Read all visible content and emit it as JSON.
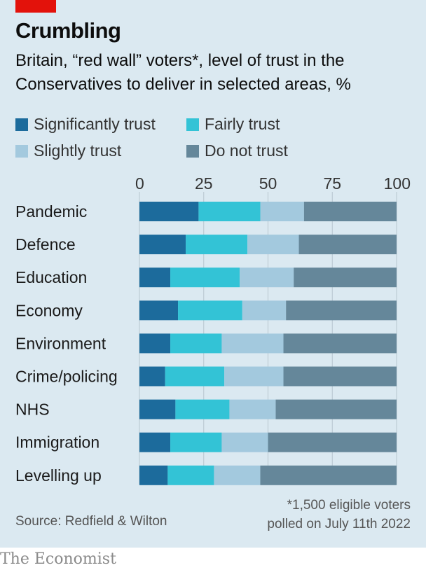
{
  "header": {
    "title": "Crumbling",
    "subtitle": "Britain, “red wall” voters*, level of trust in the Conservatives to deliver in selected areas, %"
  },
  "chart_data": {
    "type": "bar",
    "orientation": "horizontal",
    "stacked": true,
    "categories": [
      "Pandemic",
      "Defence",
      "Education",
      "Economy",
      "Environment",
      "Crime/policing",
      "NHS",
      "Immigration",
      "Levelling up"
    ],
    "series": [
      {
        "name": "Significantly trust",
        "color": "#1c6b9c",
        "values": [
          23,
          18,
          12,
          15,
          12,
          10,
          14,
          12,
          11
        ]
      },
      {
        "name": "Fairly trust",
        "color": "#33c3d6",
        "values": [
          24,
          24,
          27,
          25,
          20,
          23,
          21,
          20,
          18
        ]
      },
      {
        "name": "Slightly trust",
        "color": "#a3c9de",
        "values": [
          17,
          20,
          21,
          17,
          24,
          23,
          18,
          18,
          18
        ]
      },
      {
        "name": "Do not trust",
        "color": "#65879a",
        "values": [
          36,
          38,
          40,
          43,
          44,
          44,
          47,
          50,
          53
        ]
      }
    ],
    "xticks": [
      "0",
      "25",
      "50",
      "75",
      "100"
    ],
    "xlim": [
      0,
      100
    ],
    "legend_position": "top"
  },
  "footer": {
    "source": "Source: Redfield & Wilton",
    "note_line1": "*1,500 eligible voters",
    "note_line2": "polled on July 11th 2022",
    "brand": "The Economist"
  }
}
